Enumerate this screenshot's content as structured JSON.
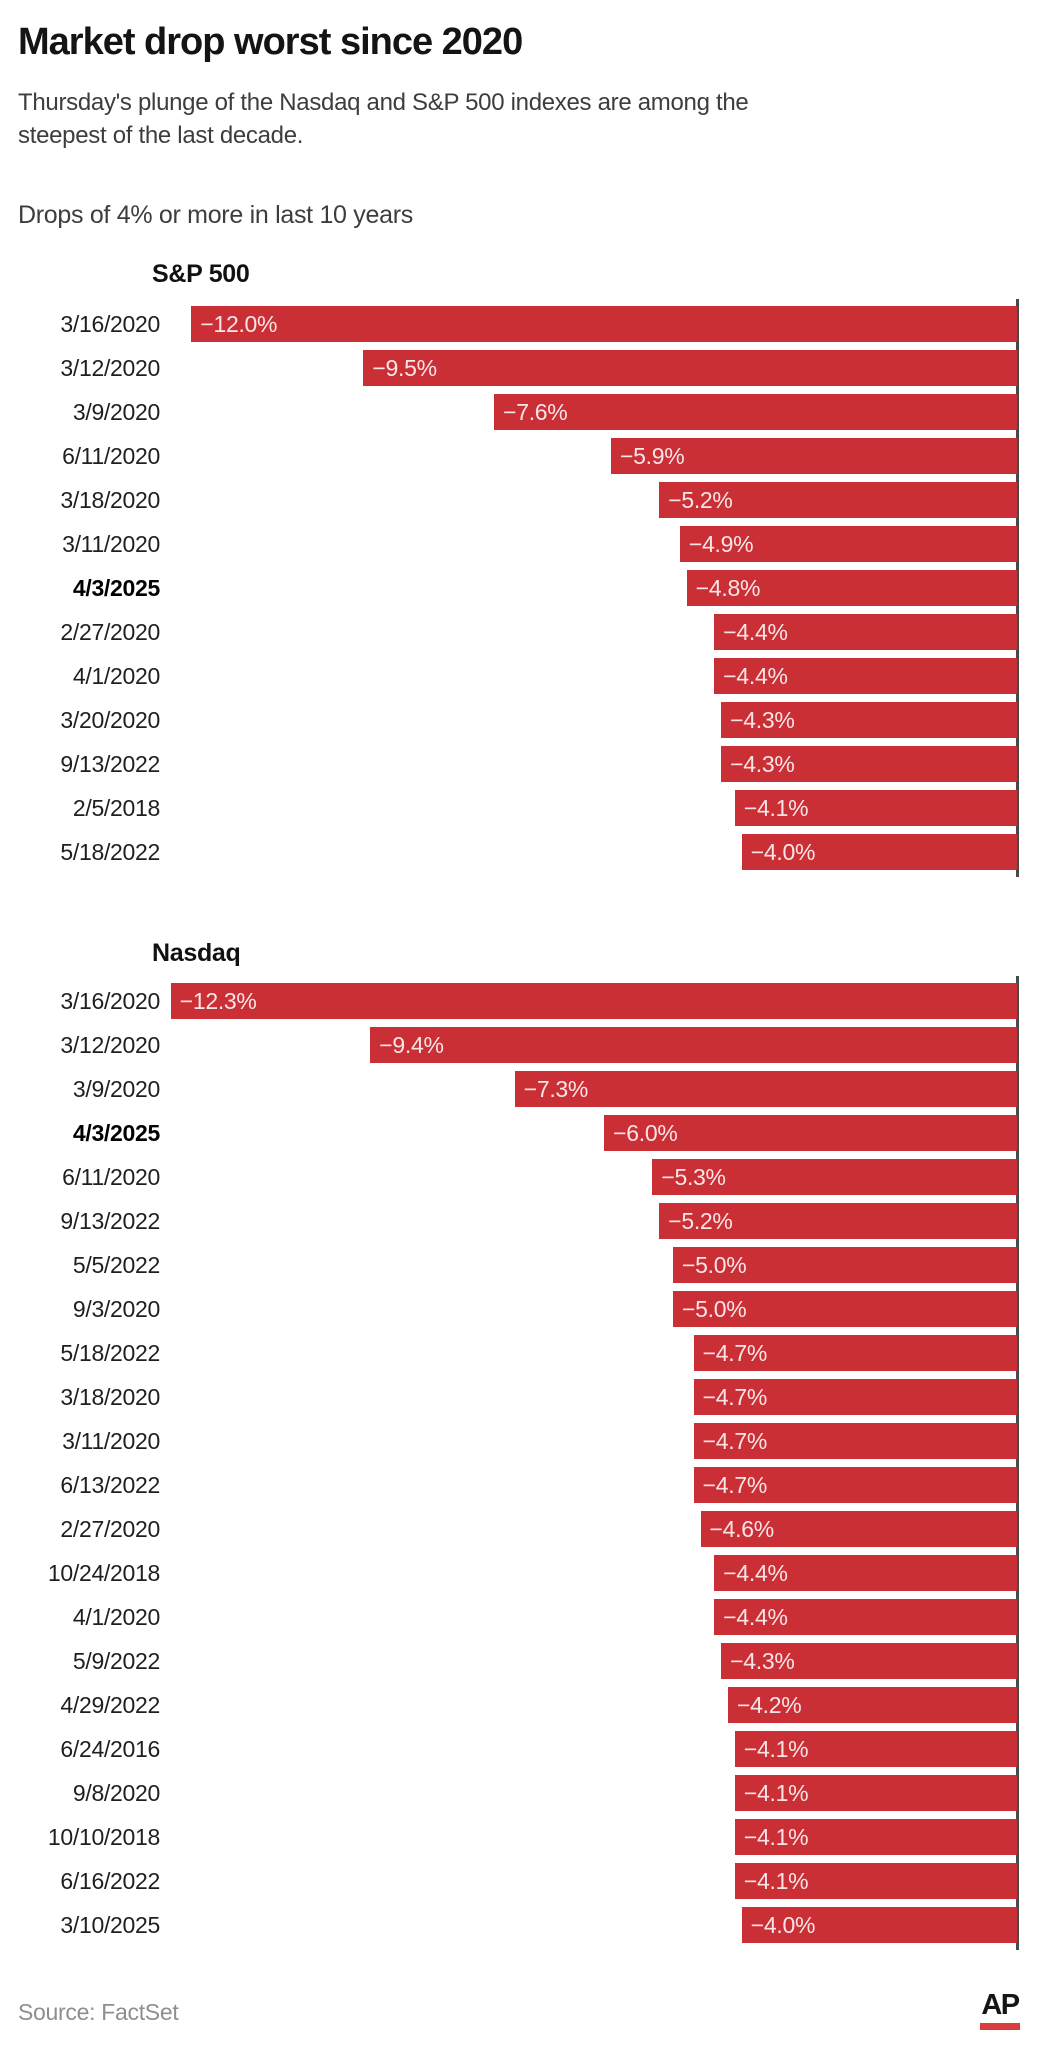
{
  "header": {
    "title": "Market drop worst since 2020",
    "subtitle_lines": [
      "Thursday's plunge of the Nasdaq and S&P 500 indexes are among the",
      "steepest of the last decade."
    ],
    "section_label": "Drops of 4% or more in last 10 years"
  },
  "colors": {
    "bar_red": "#cb2f36",
    "axis_gray": "#4a4a4a",
    "ap_red": "#d93b3f"
  },
  "chart_data": [
    {
      "type": "bar",
      "title": "S&P 500",
      "orientation": "horizontal, right-anchored",
      "unit": "%",
      "xlim": [
        -12.31,
        0
      ],
      "grid": false,
      "legend": "none",
      "rows": [
        {
          "date": "3/16/2020",
          "drop_pct": -12.0,
          "label": "−12.0%",
          "bold": false
        },
        {
          "date": "3/12/2020",
          "drop_pct": -9.5,
          "label": "−9.5%",
          "bold": false
        },
        {
          "date": "3/9/2020",
          "drop_pct": -7.6,
          "label": "−7.6%",
          "bold": false
        },
        {
          "date": "6/11/2020",
          "drop_pct": -5.9,
          "label": "−5.9%",
          "bold": false
        },
        {
          "date": "3/18/2020",
          "drop_pct": -5.2,
          "label": "−5.2%",
          "bold": false
        },
        {
          "date": "3/11/2020",
          "drop_pct": -4.9,
          "label": "−4.9%",
          "bold": false
        },
        {
          "date": "4/3/2025",
          "drop_pct": -4.8,
          "label": "−4.8%",
          "bold": true
        },
        {
          "date": "2/27/2020",
          "drop_pct": -4.4,
          "label": "−4.4%",
          "bold": false
        },
        {
          "date": "4/1/2020",
          "drop_pct": -4.4,
          "label": "−4.4%",
          "bold": false
        },
        {
          "date": "3/20/2020",
          "drop_pct": -4.3,
          "label": "−4.3%",
          "bold": false
        },
        {
          "date": "9/13/2022",
          "drop_pct": -4.3,
          "label": "−4.3%",
          "bold": false
        },
        {
          "date": "2/5/2018",
          "drop_pct": -4.1,
          "label": "−4.1%",
          "bold": false
        },
        {
          "date": "5/18/2022",
          "drop_pct": -4.0,
          "label": "−4.0%",
          "bold": false
        }
      ]
    },
    {
      "type": "bar",
      "title": "Nasdaq",
      "orientation": "horizontal, right-anchored",
      "unit": "%",
      "xlim": [
        -12.31,
        0
      ],
      "grid": false,
      "legend": "none",
      "rows": [
        {
          "date": "3/16/2020",
          "drop_pct": -12.3,
          "label": "−12.3%",
          "bold": false
        },
        {
          "date": "3/12/2020",
          "drop_pct": -9.4,
          "label": "−9.4%",
          "bold": false
        },
        {
          "date": "3/9/2020",
          "drop_pct": -7.3,
          "label": "−7.3%",
          "bold": false
        },
        {
          "date": "4/3/2025",
          "drop_pct": -6.0,
          "label": "−6.0%",
          "bold": true
        },
        {
          "date": "6/11/2020",
          "drop_pct": -5.3,
          "label": "−5.3%",
          "bold": false
        },
        {
          "date": "9/13/2022",
          "drop_pct": -5.2,
          "label": "−5.2%",
          "bold": false
        },
        {
          "date": "5/5/2022",
          "drop_pct": -5.0,
          "label": "−5.0%",
          "bold": false
        },
        {
          "date": "9/3/2020",
          "drop_pct": -5.0,
          "label": "−5.0%",
          "bold": false
        },
        {
          "date": "5/18/2022",
          "drop_pct": -4.7,
          "label": "−4.7%",
          "bold": false
        },
        {
          "date": "3/18/2020",
          "drop_pct": -4.7,
          "label": "−4.7%",
          "bold": false
        },
        {
          "date": "3/11/2020",
          "drop_pct": -4.7,
          "label": "−4.7%",
          "bold": false
        },
        {
          "date": "6/13/2022",
          "drop_pct": -4.7,
          "label": "−4.7%",
          "bold": false
        },
        {
          "date": "2/27/2020",
          "drop_pct": -4.6,
          "label": "−4.6%",
          "bold": false
        },
        {
          "date": "10/24/2018",
          "drop_pct": -4.4,
          "label": "−4.4%",
          "bold": false
        },
        {
          "date": "4/1/2020",
          "drop_pct": -4.4,
          "label": "−4.4%",
          "bold": false
        },
        {
          "date": "5/9/2022",
          "drop_pct": -4.3,
          "label": "−4.3%",
          "bold": false
        },
        {
          "date": "4/29/2022",
          "drop_pct": -4.2,
          "label": "−4.2%",
          "bold": false
        },
        {
          "date": "6/24/2016",
          "drop_pct": -4.1,
          "label": "−4.1%",
          "bold": false
        },
        {
          "date": "9/8/2020",
          "drop_pct": -4.1,
          "label": "−4.1%",
          "bold": false
        },
        {
          "date": "10/10/2018",
          "drop_pct": -4.1,
          "label": "−4.1%",
          "bold": false
        },
        {
          "date": "6/16/2022",
          "drop_pct": -4.1,
          "label": "−4.1%",
          "bold": false
        },
        {
          "date": "3/10/2025",
          "drop_pct": -4.0,
          "label": "−4.0%",
          "bold": false
        }
      ]
    }
  ],
  "footer": {
    "source": "Source: FactSet",
    "logo_text": "AP"
  }
}
